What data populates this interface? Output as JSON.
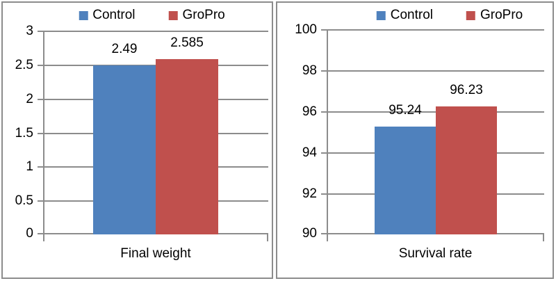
{
  "colors": {
    "control": "#4f81bd",
    "gropro": "#c0504d",
    "gridline": "#8c8c8c",
    "axis": "#8c8c8c",
    "panel_border": "#8c8c8c",
    "text": "#000000",
    "background": "#ffffff"
  },
  "legend": {
    "position": "top",
    "items": [
      {
        "label": "Control",
        "color": "#4f81bd"
      },
      {
        "label": "GroPro",
        "color": "#c0504d"
      }
    ]
  },
  "chart_data": [
    {
      "type": "bar",
      "title": "",
      "categories": [
        "Final weight"
      ],
      "series": [
        {
          "name": "Control",
          "color": "#4f81bd",
          "values": [
            2.49
          ]
        },
        {
          "name": "GroPro",
          "color": "#c0504d",
          "values": [
            2.585
          ]
        }
      ],
      "data_labels": [
        "2.49",
        "2.585"
      ],
      "ylim": [
        0,
        3
      ],
      "ytick_step": 0.5,
      "yticks": [
        "3",
        "2.5",
        "2",
        "1.5",
        "1",
        "0.5",
        "0"
      ],
      "grid": true,
      "legend_position": "top"
    },
    {
      "type": "bar",
      "title": "",
      "categories": [
        "Survival rate"
      ],
      "series": [
        {
          "name": "Control",
          "color": "#4f81bd",
          "values": [
            95.24
          ]
        },
        {
          "name": "GroPro",
          "color": "#c0504d",
          "values": [
            96.23
          ]
        }
      ],
      "data_labels": [
        "95.24",
        "96.23"
      ],
      "ylim": [
        90,
        100
      ],
      "ytick_step": 2,
      "yticks": [
        "100",
        "98",
        "96",
        "94",
        "92",
        "90"
      ],
      "grid": true,
      "legend_position": "top"
    }
  ]
}
